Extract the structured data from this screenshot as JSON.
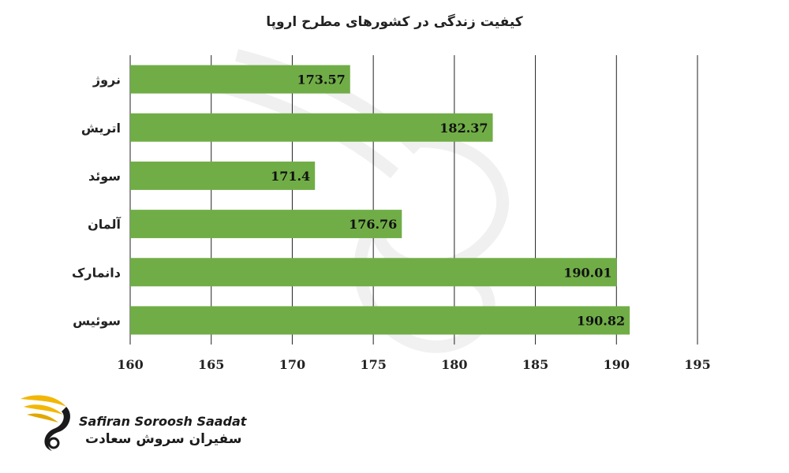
{
  "chart_data": {
    "type": "bar",
    "orientation": "horizontal",
    "title": "کیفیت زندگی در کشورهای مطرح اروپا",
    "categories": [
      "نروژ",
      "اتریش",
      "سوئد",
      "آلمان",
      "دانمارک",
      "سوئیس"
    ],
    "values": [
      173.57,
      182.37,
      171.4,
      176.76,
      190.01,
      190.82
    ],
    "value_labels": [
      "173.57",
      "182.37",
      "171.4",
      "176.76",
      "190.01",
      "190.82"
    ],
    "xlim": [
      160,
      195
    ],
    "xticks": [
      "160",
      "165",
      "170",
      "175",
      "180",
      "185",
      "190",
      "195"
    ],
    "grid": true,
    "legend": "none",
    "bar_color": "#70ad47"
  },
  "logo": {
    "name_en": "Safiran Soroosh Saadat",
    "name_fa": "سفیران سروش سعادت",
    "accent_color": "#f2b705"
  }
}
